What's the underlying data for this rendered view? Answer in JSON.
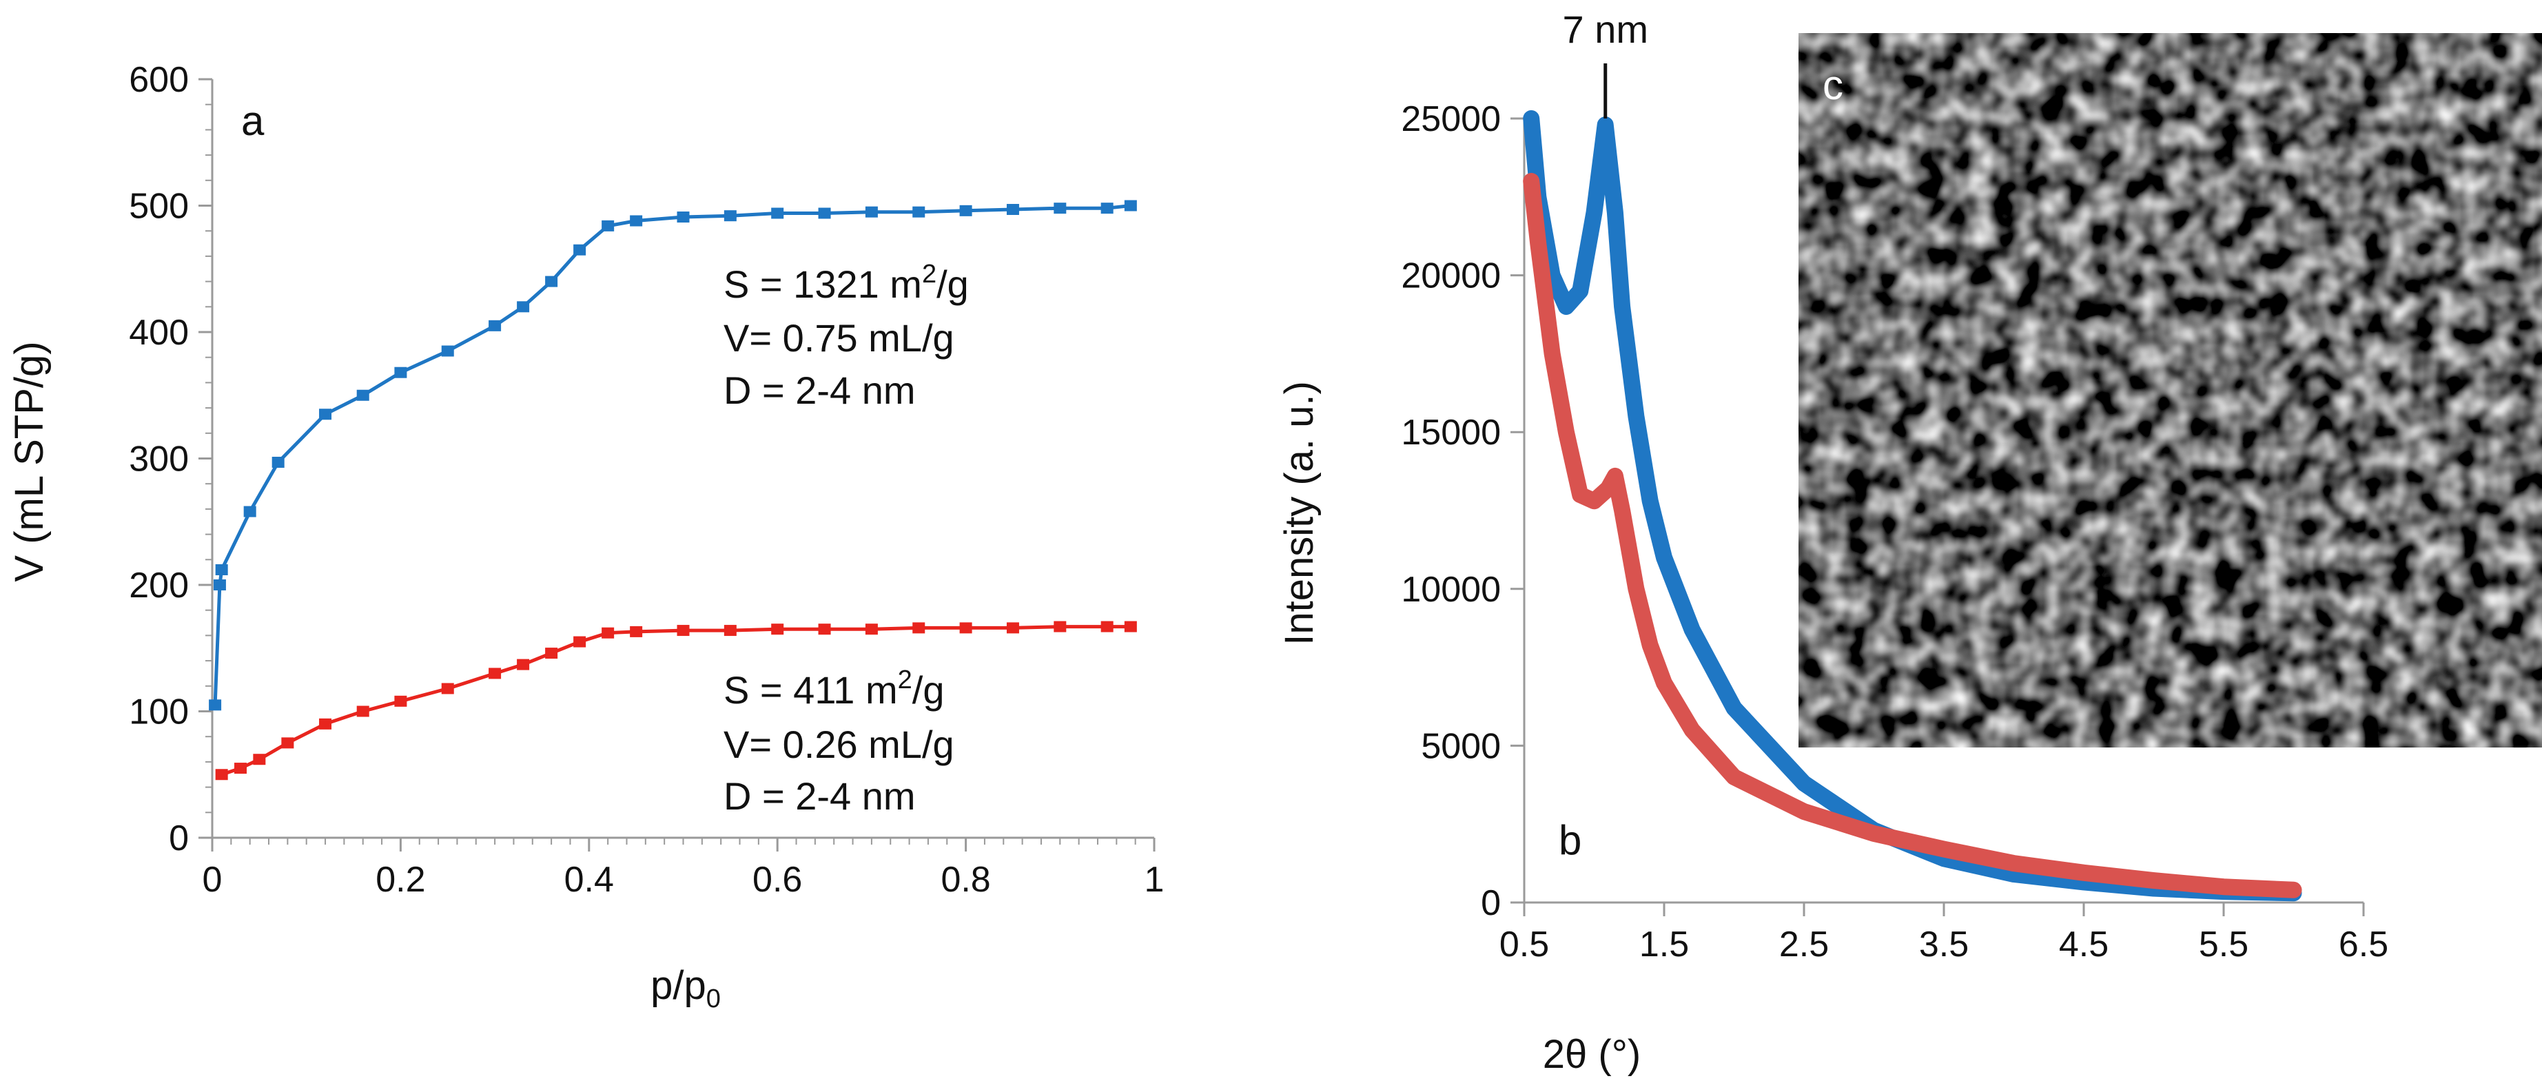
{
  "colors": {
    "blue": "#1f77c4",
    "red": "#e8251e",
    "red_muted": "#d9534f",
    "axis": "#9a9a9a",
    "text": "#111111"
  },
  "chart_data": [
    {
      "panel": "a",
      "type": "line",
      "xlabel": "p/p₀",
      "xlabel_main": "p/p",
      "xlabel_sub": "0",
      "ylabel": "V (mL STP/g)",
      "xlim": [
        0,
        1
      ],
      "ylim": [
        0,
        600
      ],
      "x_ticks": [
        0,
        0.2,
        0.4,
        0.6,
        0.8,
        1
      ],
      "x_tick_labels": [
        "0",
        "0.2",
        "0.4",
        "0.6",
        "0.8",
        "1"
      ],
      "y_ticks": [
        0,
        100,
        200,
        300,
        400,
        500,
        600
      ],
      "y_tick_labels": [
        "0",
        "100",
        "200",
        "300",
        "400",
        "500",
        "600"
      ],
      "series": [
        {
          "name": "blue",
          "color_key": "blue",
          "points": [
            [
              0.003,
              105
            ],
            [
              0.008,
              200
            ],
            [
              0.01,
              212
            ],
            [
              0.04,
              258
            ],
            [
              0.07,
              297
            ],
            [
              0.12,
              335
            ],
            [
              0.16,
              350
            ],
            [
              0.2,
              368
            ],
            [
              0.25,
              385
            ],
            [
              0.3,
              405
            ],
            [
              0.33,
              420
            ],
            [
              0.36,
              440
            ],
            [
              0.39,
              465
            ],
            [
              0.42,
              484
            ],
            [
              0.45,
              488
            ],
            [
              0.5,
              491
            ],
            [
              0.55,
              492
            ],
            [
              0.6,
              494
            ],
            [
              0.65,
              494
            ],
            [
              0.7,
              495
            ],
            [
              0.75,
              495
            ],
            [
              0.8,
              496
            ],
            [
              0.85,
              497
            ],
            [
              0.9,
              498
            ],
            [
              0.95,
              498
            ],
            [
              0.975,
              500
            ]
          ]
        },
        {
          "name": "red",
          "color_key": "red",
          "points": [
            [
              0.01,
              50
            ],
            [
              0.03,
              55
            ],
            [
              0.05,
              62
            ],
            [
              0.08,
              75
            ],
            [
              0.12,
              90
            ],
            [
              0.16,
              100
            ],
            [
              0.2,
              108
            ],
            [
              0.25,
              118
            ],
            [
              0.3,
              130
            ],
            [
              0.33,
              137
            ],
            [
              0.36,
              146
            ],
            [
              0.39,
              155
            ],
            [
              0.42,
              162
            ],
            [
              0.45,
              163
            ],
            [
              0.5,
              164
            ],
            [
              0.55,
              164
            ],
            [
              0.6,
              165
            ],
            [
              0.65,
              165
            ],
            [
              0.7,
              165
            ],
            [
              0.75,
              166
            ],
            [
              0.8,
              166
            ],
            [
              0.85,
              166
            ],
            [
              0.9,
              167
            ],
            [
              0.95,
              167
            ],
            [
              0.975,
              167
            ]
          ]
        }
      ],
      "annotations": [
        {
          "lines": [
            [
              "S = 1321 m",
              "2",
              "/g"
            ],
            [
              "V= 0.75 mL/g"
            ],
            [
              "D = 2-4 nm"
            ]
          ]
        },
        {
          "lines": [
            [
              "S = 411 m",
              "2",
              "/g"
            ],
            [
              "V= 0.26 mL/g"
            ],
            [
              "D = 2-4 nm"
            ]
          ]
        }
      ]
    },
    {
      "panel": "b",
      "type": "line",
      "xlabel": "2θ (°)",
      "ylabel": "Intensity (a. u.)",
      "xlim": [
        0.5,
        6.5
      ],
      "ylim": [
        0,
        25000
      ],
      "x_ticks": [
        0.5,
        1.5,
        2.5,
        3.5,
        4.5,
        5.5,
        6.5
      ],
      "x_tick_labels": [
        "0.5",
        "1.5",
        "2.5",
        "3.5",
        "4.5",
        "5.5",
        "6.5"
      ],
      "y_ticks": [
        0,
        5000,
        10000,
        15000,
        20000,
        25000
      ],
      "y_tick_labels": [
        "0",
        "5000",
        "10000",
        "15000",
        "20000",
        "25000"
      ],
      "series": [
        {
          "name": "blue",
          "color_key": "blue",
          "points": [
            [
              0.55,
              25000
            ],
            [
              0.6,
              22500
            ],
            [
              0.7,
              20000
            ],
            [
              0.8,
              19000
            ],
            [
              0.9,
              19500
            ],
            [
              1.0,
              22000
            ],
            [
              1.08,
              24800
            ],
            [
              1.15,
              22000
            ],
            [
              1.2,
              19000
            ],
            [
              1.3,
              15500
            ],
            [
              1.4,
              12800
            ],
            [
              1.5,
              11000
            ],
            [
              1.7,
              8700
            ],
            [
              2.0,
              6200
            ],
            [
              2.5,
              3800
            ],
            [
              3.0,
              2300
            ],
            [
              3.5,
              1400
            ],
            [
              4.0,
              900
            ],
            [
              4.5,
              650
            ],
            [
              5.0,
              450
            ],
            [
              5.5,
              350
            ],
            [
              6.0,
              300
            ]
          ]
        },
        {
          "name": "red",
          "color_key": "red_muted",
          "points": [
            [
              0.55,
              23000
            ],
            [
              0.6,
              21000
            ],
            [
              0.7,
              17500
            ],
            [
              0.8,
              15000
            ],
            [
              0.9,
              13000
            ],
            [
              1.0,
              12800
            ],
            [
              1.1,
              13200
            ],
            [
              1.15,
              13600
            ],
            [
              1.2,
              12500
            ],
            [
              1.3,
              10000
            ],
            [
              1.4,
              8200
            ],
            [
              1.5,
              7000
            ],
            [
              1.7,
              5500
            ],
            [
              2.0,
              4000
            ],
            [
              2.5,
              2900
            ],
            [
              3.0,
              2200
            ],
            [
              3.5,
              1700
            ],
            [
              4.0,
              1250
            ],
            [
              4.5,
              950
            ],
            [
              5.0,
              700
            ],
            [
              5.5,
              500
            ],
            [
              6.0,
              400
            ]
          ]
        }
      ],
      "peak_marker": {
        "x": 1.08,
        "label": "7 nm"
      }
    }
  ],
  "panel_c": {
    "label": "c",
    "kind": "TEM micrograph of disordered mesopores"
  }
}
